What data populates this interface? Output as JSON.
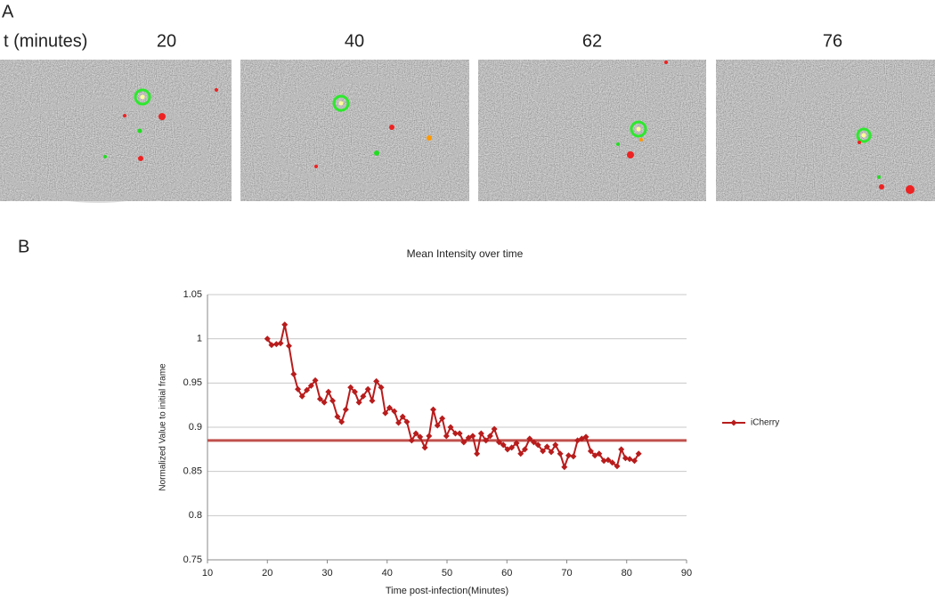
{
  "panel_a": {
    "label": "A",
    "time_label": "t (minutes)",
    "timepoints": [
      "20",
      "40",
      "62",
      "76"
    ]
  },
  "panel_b": {
    "label": "B"
  },
  "chart_data": {
    "type": "line",
    "title": "Mean Intensity over time",
    "x_label": "Time post-infection(Minutes)",
    "y_label": "Normalized Value to initial frame",
    "xlim": [
      10,
      90
    ],
    "xticks": [
      10,
      20,
      30,
      40,
      50,
      60,
      70,
      80,
      90
    ],
    "ylim": [
      0.75,
      1.05
    ],
    "yticks": [
      0.75,
      0.8,
      0.85,
      0.9,
      0.95,
      1,
      1.05
    ],
    "grid": true,
    "legend": "right",
    "reference_line": {
      "value": 0.885,
      "color": "#c0504d"
    },
    "x": [
      20.0,
      20.7,
      21.5,
      22.2,
      22.9,
      23.6,
      24.4,
      25.1,
      25.8,
      26.6,
      27.3,
      28.0,
      28.8,
      29.5,
      30.2,
      30.9,
      31.7,
      32.4,
      33.1,
      33.9,
      34.6,
      35.3,
      36.0,
      36.8,
      37.5,
      38.2,
      39.0,
      39.7,
      40.4,
      41.2,
      41.9,
      42.6,
      43.3,
      44.1,
      44.8,
      45.5,
      46.3,
      47.0,
      47.7,
      48.4,
      49.2,
      49.9,
      50.6,
      51.4,
      52.1,
      52.8,
      53.6,
      54.3,
      55.0,
      55.7,
      56.5,
      57.2,
      57.9,
      58.7,
      59.4,
      60.1,
      60.8,
      61.6,
      62.3,
      63.0,
      63.8,
      64.5,
      65.2,
      66.0,
      66.7,
      67.4,
      68.1,
      68.9,
      69.6,
      70.3,
      71.1,
      71.8,
      72.5,
      73.2,
      74.0,
      74.7,
      75.4,
      76.2,
      76.9,
      77.6,
      78.4,
      79.1,
      79.8,
      80.5,
      81.3,
      82.0
    ],
    "series": [
      {
        "name": "iCherry",
        "color": "#b81c1c",
        "values": [
          1,
          0.993,
          0.994,
          0.995,
          1.016,
          0.992,
          0.96,
          0.943,
          0.935,
          0.942,
          0.947,
          0.953,
          0.932,
          0.928,
          0.94,
          0.93,
          0.912,
          0.906,
          0.92,
          0.945,
          0.94,
          0.928,
          0.935,
          0.943,
          0.93,
          0.952,
          0.945,
          0.916,
          0.922,
          0.918,
          0.905,
          0.912,
          0.906,
          0.885,
          0.893,
          0.889,
          0.877,
          0.89,
          0.92,
          0.902,
          0.91,
          0.89,
          0.9,
          0.893,
          0.893,
          0.883,
          0.888,
          0.89,
          0.87,
          0.893,
          0.885,
          0.89,
          0.898,
          0.883,
          0.88,
          0.875,
          0.877,
          0.882,
          0.87,
          0.875,
          0.887,
          0.883,
          0.88,
          0.873,
          0.878,
          0.872,
          0.88,
          0.87,
          0.855,
          0.868,
          0.867,
          0.885,
          0.887,
          0.889,
          0.873,
          0.868,
          0.87,
          0.862,
          0.863,
          0.86,
          0.856,
          0.875,
          0.865,
          0.864,
          0.862,
          0.87
        ]
      }
    ]
  }
}
